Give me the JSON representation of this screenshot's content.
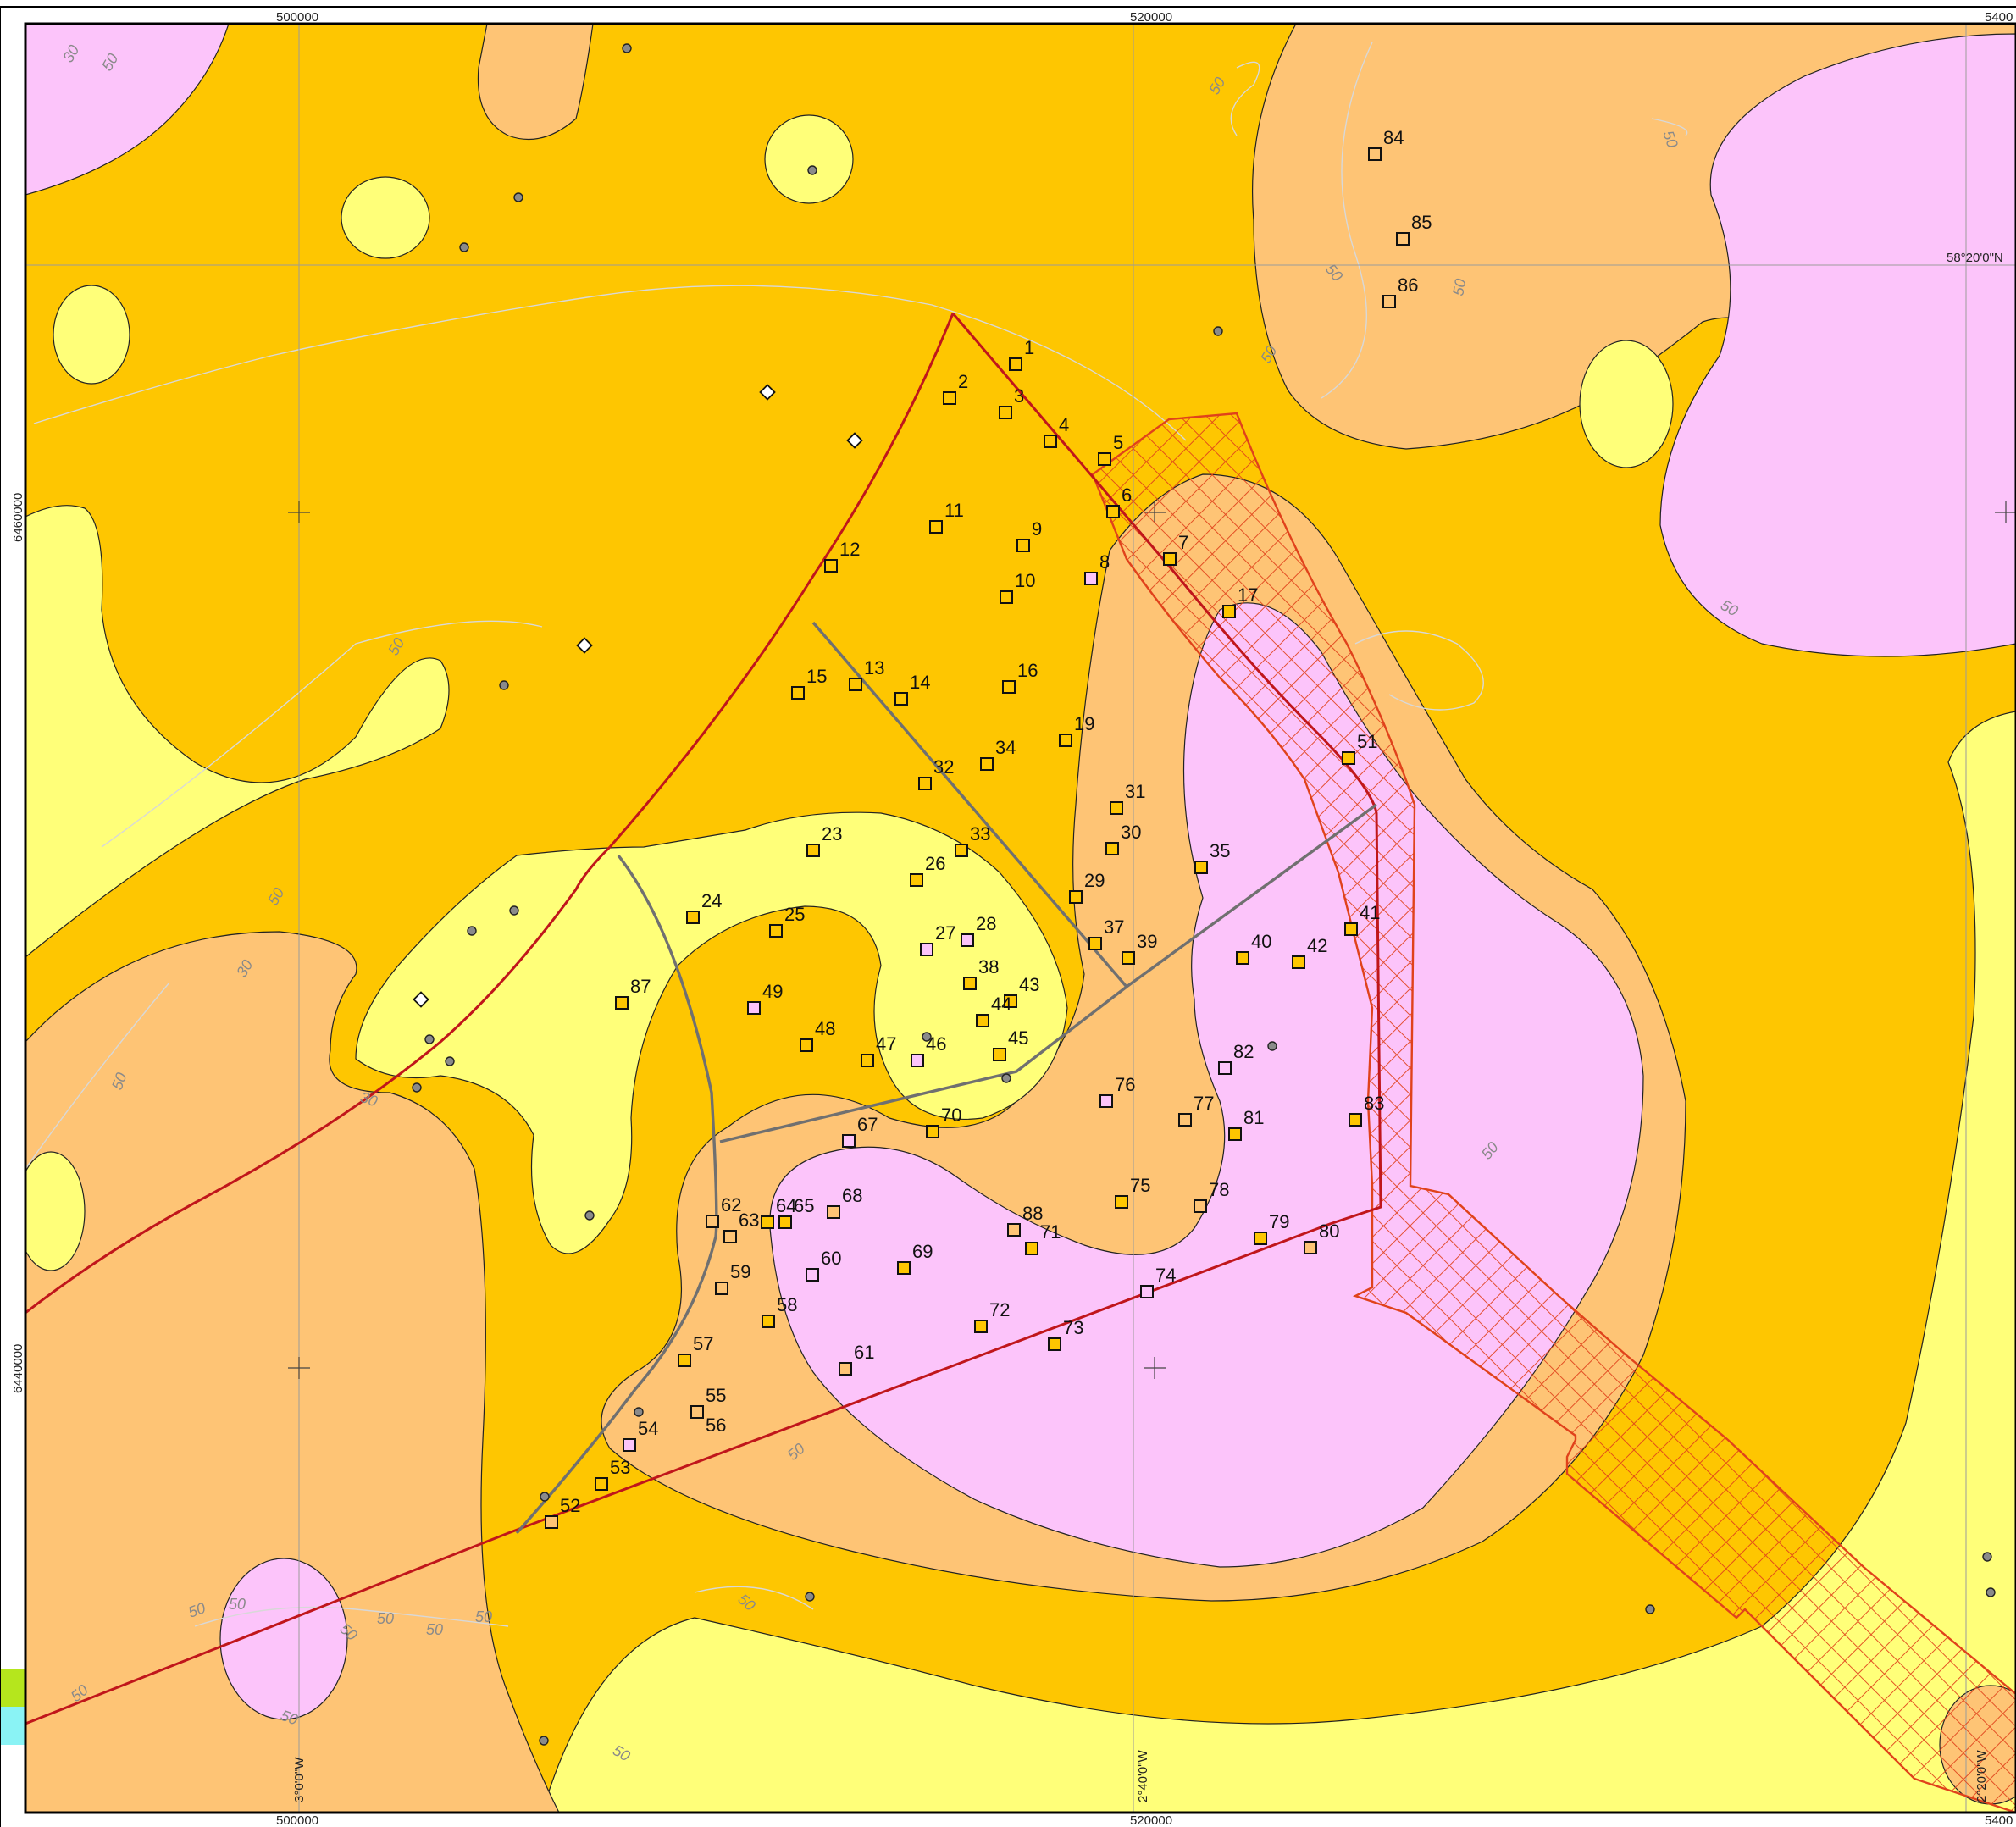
{
  "colors": {
    "zone_light_yellow": "#ffff79",
    "zone_dark_yellow": "#fec601",
    "zone_orange": "#fec475",
    "zone_pink": "#fcc4fa",
    "hatch_zone": "#e0421b",
    "boundary_red": "#c0161b",
    "boundary_grey": "#707070"
  },
  "map": {
    "grid_x_labels": [
      "500000",
      "520000",
      "5400"
    ],
    "grid_x_labels_bottom": [
      "500000",
      "520000",
      "5400"
    ],
    "grid_y_labels": [
      "6460000",
      "6440000"
    ],
    "lat_label": "58°20'0\"N",
    "lon_labels": [
      "3°0'0\"W",
      "2°40'0\"W",
      "2°20'0\"W"
    ],
    "contour_labels": [
      "30",
      "50"
    ]
  },
  "sites": [
    {
      "id": "1",
      "zone": "dark"
    },
    {
      "id": "2",
      "zone": "dark"
    },
    {
      "id": "3",
      "zone": "dark"
    },
    {
      "id": "4",
      "zone": "dark"
    },
    {
      "id": "5",
      "zone": "dark"
    },
    {
      "id": "6",
      "zone": "dark"
    },
    {
      "id": "7",
      "zone": "dark"
    },
    {
      "id": "8",
      "zone": "pink"
    },
    {
      "id": "9",
      "zone": "dark"
    },
    {
      "id": "10",
      "zone": "dark"
    },
    {
      "id": "11",
      "zone": "dark"
    },
    {
      "id": "12",
      "zone": "dark"
    },
    {
      "id": "13",
      "zone": "dark"
    },
    {
      "id": "14",
      "zone": "dark"
    },
    {
      "id": "15",
      "zone": "dark"
    },
    {
      "id": "16",
      "zone": "dark"
    },
    {
      "id": "17",
      "zone": "dark"
    },
    {
      "id": "19",
      "zone": "dark"
    },
    {
      "id": "23",
      "zone": "dark"
    },
    {
      "id": "24",
      "zone": "dark"
    },
    {
      "id": "25",
      "zone": "dark"
    },
    {
      "id": "26",
      "zone": "dark"
    },
    {
      "id": "27",
      "zone": "pink"
    },
    {
      "id": "28",
      "zone": "pink"
    },
    {
      "id": "29",
      "zone": "dark"
    },
    {
      "id": "30",
      "zone": "dark"
    },
    {
      "id": "31",
      "zone": "dark"
    },
    {
      "id": "32",
      "zone": "dark"
    },
    {
      "id": "33",
      "zone": "dark"
    },
    {
      "id": "34",
      "zone": "dark"
    },
    {
      "id": "35",
      "zone": "dark"
    },
    {
      "id": "37",
      "zone": "dark"
    },
    {
      "id": "38",
      "zone": "dark"
    },
    {
      "id": "39",
      "zone": "dark"
    },
    {
      "id": "40",
      "zone": "dark"
    },
    {
      "id": "41",
      "zone": "dark"
    },
    {
      "id": "42",
      "zone": "dark"
    },
    {
      "id": "43",
      "zone": "dark"
    },
    {
      "id": "44",
      "zone": "dark"
    },
    {
      "id": "45",
      "zone": "dark"
    },
    {
      "id": "46",
      "zone": "pink"
    },
    {
      "id": "47",
      "zone": "dark"
    },
    {
      "id": "48",
      "zone": "dark"
    },
    {
      "id": "49",
      "zone": "pink"
    },
    {
      "id": "51",
      "zone": "dark"
    },
    {
      "id": "52",
      "zone": "orange"
    },
    {
      "id": "53",
      "zone": "dark"
    },
    {
      "id": "54",
      "zone": "pink"
    },
    {
      "id": "55",
      "zone": "orange"
    },
    {
      "id": "56",
      "zone": "orange"
    },
    {
      "id": "57",
      "zone": "dark"
    },
    {
      "id": "58",
      "zone": "dark"
    },
    {
      "id": "59",
      "zone": "orange"
    },
    {
      "id": "60",
      "zone": "pink"
    },
    {
      "id": "61",
      "zone": "orange"
    },
    {
      "id": "62",
      "zone": "orange"
    },
    {
      "id": "63",
      "zone": "orange"
    },
    {
      "id": "64",
      "zone": "dark"
    },
    {
      "id": "65",
      "zone": "dark"
    },
    {
      "id": "67",
      "zone": "pink"
    },
    {
      "id": "68",
      "zone": "orange"
    },
    {
      "id": "69",
      "zone": "dark"
    },
    {
      "id": "70",
      "zone": "dark"
    },
    {
      "id": "71",
      "zone": "dark"
    },
    {
      "id": "72",
      "zone": "dark"
    },
    {
      "id": "73",
      "zone": "dark"
    },
    {
      "id": "74",
      "zone": "pink"
    },
    {
      "id": "75",
      "zone": "dark"
    },
    {
      "id": "76",
      "zone": "pink"
    },
    {
      "id": "77",
      "zone": "orange"
    },
    {
      "id": "78",
      "zone": "orange"
    },
    {
      "id": "79",
      "zone": "dark"
    },
    {
      "id": "80",
      "zone": "orange"
    },
    {
      "id": "81",
      "zone": "dark"
    },
    {
      "id": "82",
      "zone": "pink"
    },
    {
      "id": "83",
      "zone": "dark"
    },
    {
      "id": "84",
      "zone": "orange"
    },
    {
      "id": "85",
      "zone": "orange"
    },
    {
      "id": "86",
      "zone": "orange"
    },
    {
      "id": "87",
      "zone": "dark"
    },
    {
      "id": "88",
      "zone": "orange"
    }
  ]
}
